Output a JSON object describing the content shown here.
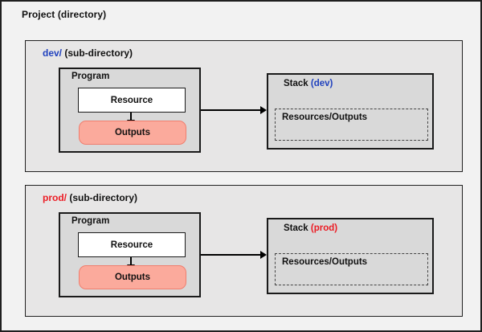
{
  "diagram": {
    "title": "Project (directory)",
    "sections": [
      {
        "id": "dev",
        "dir_name": "dev/",
        "dir_suffix": "(sub-directory)",
        "accent_color": "#2041be",
        "program": {
          "title": "Program",
          "resource_label": "Resource",
          "outputs_label": "Outputs"
        },
        "stack": {
          "title": "Stack",
          "env_label": "(dev)",
          "contents_label": "Resources/Outputs"
        }
      },
      {
        "id": "prod",
        "dir_name": "prod/",
        "dir_suffix": "(sub-directory)",
        "accent_color": "#ec1c24",
        "program": {
          "title": "Program",
          "resource_label": "Resource",
          "outputs_label": "Outputs"
        },
        "stack": {
          "title": "Stack",
          "env_label": "(prod)",
          "contents_label": "Resources/Outputs"
        }
      }
    ],
    "colors": {
      "dev_accent": "#2041be",
      "prod_accent": "#ec1c24",
      "outputs_fill": "#fbaa9c",
      "outputs_border": "#f07e6e",
      "canvas_fill": "#f2f2f2",
      "subdir_fill": "#e7e6e6",
      "inner_box_fill": "#d9d9d9",
      "border_color": "#1a1a1a"
    }
  }
}
